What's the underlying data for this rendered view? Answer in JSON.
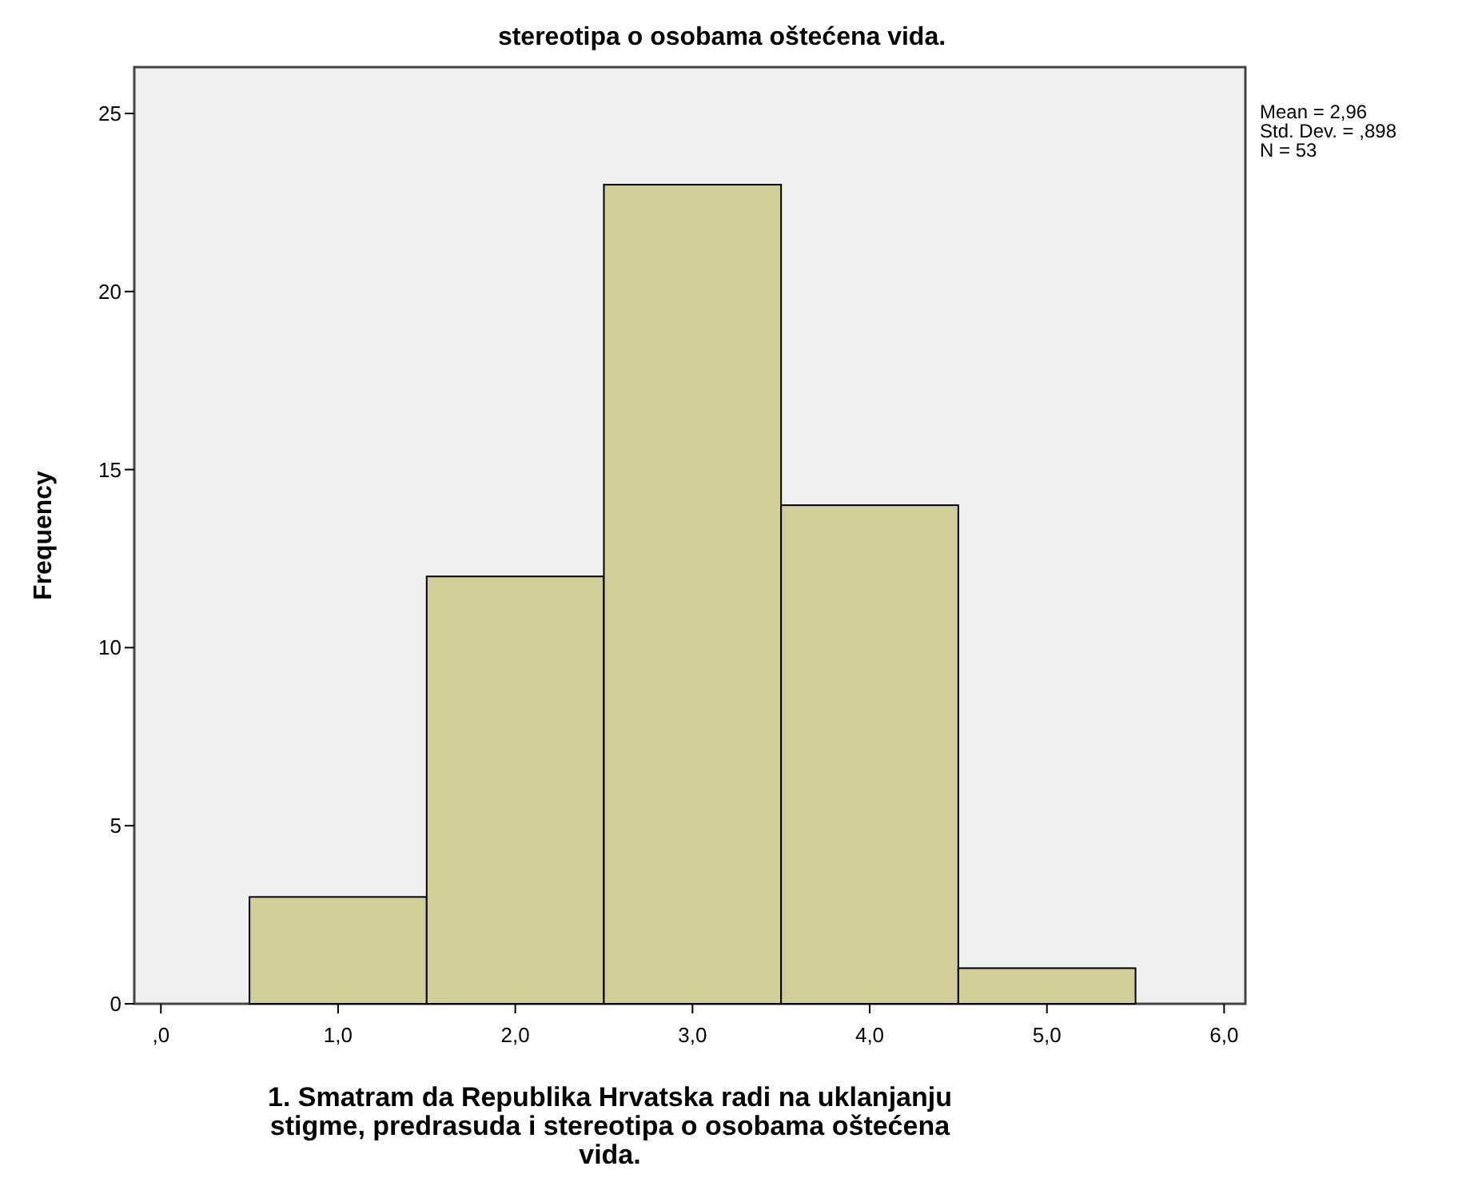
{
  "chart_data": {
    "type": "histogram",
    "title": "stereotipa o osobama oštećena vida.",
    "xlabel": "1. Smatram da Republika Hrvatska radi na uklanjanju stigme, predrasuda i stereotipa o osobama oštećena vida.",
    "ylabel": "Frequency",
    "bins": [
      0.5,
      1.5,
      2.5,
      3.5,
      4.5,
      5.5
    ],
    "values": [
      3,
      12,
      23,
      14,
      1
    ],
    "color": "#d3ce97",
    "xlim": [
      -0.15,
      6.12
    ],
    "xticks": [
      {
        "value": 0,
        "label": ",0"
      },
      {
        "value": 1,
        "label": "1,0"
      },
      {
        "value": 2,
        "label": "2,0"
      },
      {
        "value": 3,
        "label": "3,0"
      },
      {
        "value": 4,
        "label": "4,0"
      },
      {
        "value": 5,
        "label": "5,0"
      },
      {
        "value": 6,
        "label": "6,0"
      }
    ],
    "ylim": [
      0,
      26.3
    ],
    "yticks": [
      0,
      5,
      10,
      15,
      20,
      25
    ],
    "annotations": [
      "Mean = 2,96",
      "Std. Dev. = ,898",
      "N = 53"
    ]
  }
}
